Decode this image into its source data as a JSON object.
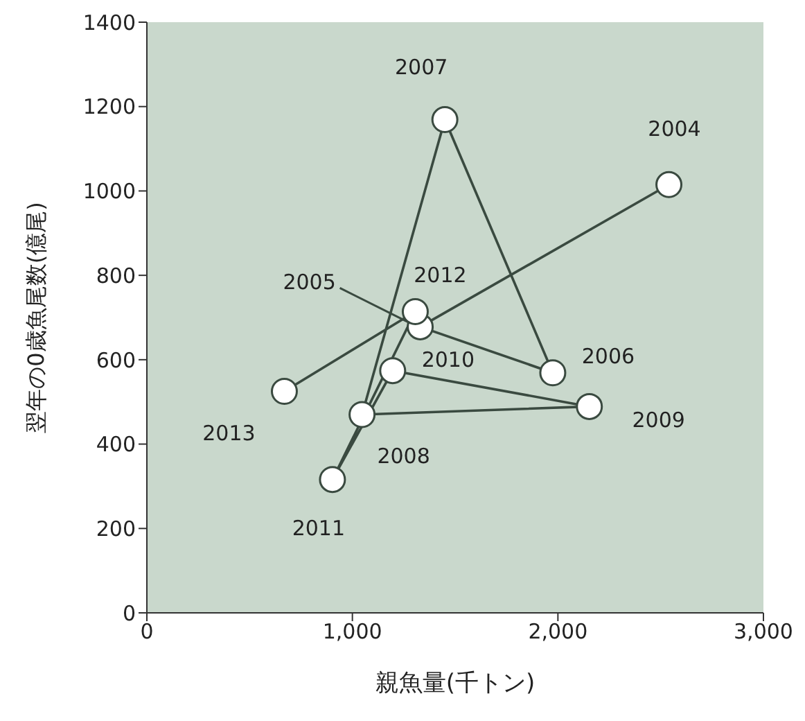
{
  "chart_data": {
    "type": "line",
    "xlabel": "親魚量(千トン)",
    "ylabel": "翌年の0歳魚尾数(億尾)",
    "x": [
      2540,
      1330,
      1975,
      1450,
      1047,
      2153,
      1196,
      903,
      1306,
      669
    ],
    "series": [
      {
        "color": "#3a4a40",
        "values": [
          1015,
          678,
          569,
          1169,
          470,
          489,
          574,
          316,
          714,
          525
        ]
      }
    ],
    "annotations": [
      {
        "text": "2004",
        "x": 2540,
        "y": 1015
      },
      {
        "text": "2005",
        "x": 1330,
        "y": 678
      },
      {
        "text": "2006",
        "x": 1975,
        "y": 569
      },
      {
        "text": "2007",
        "x": 1450,
        "y": 1169
      },
      {
        "text": "2008",
        "x": 1047,
        "y": 470
      },
      {
        "text": "2009",
        "x": 2153,
        "y": 489
      },
      {
        "text": "2010",
        "x": 1196,
        "y": 574
      },
      {
        "text": "2011",
        "x": 903,
        "y": 316
      },
      {
        "text": "2012",
        "x": 1306,
        "y": 714
      },
      {
        "text": "2013",
        "x": 669,
        "y": 525
      }
    ],
    "marker": "circle",
    "line_style": "solid",
    "grid": false,
    "legend": false,
    "xlim": [
      0,
      3000
    ],
    "xticks": [
      0,
      {
        "value": 1000,
        "label": "1,000"
      },
      {
        "value": 2000,
        "label": "2,000"
      },
      {
        "value": 3000,
        "label": "3,000"
      }
    ],
    "ylim": [
      0,
      1400
    ],
    "yticks": [
      0,
      200,
      400,
      600,
      800,
      1000,
      1200,
      1400
    ]
  }
}
